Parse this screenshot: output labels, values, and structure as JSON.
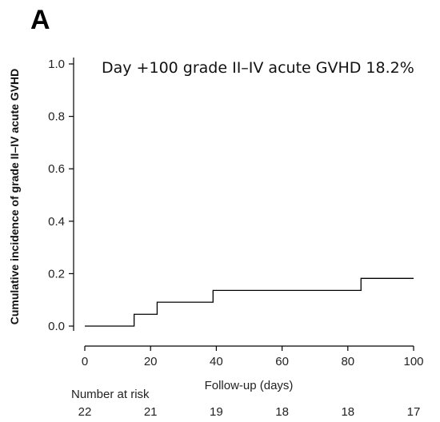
{
  "panel_label": "A",
  "chart_data": {
    "type": "line",
    "step": true,
    "annotation": "Day +100 grade II–IV acute GVHD 18.2%",
    "xlabel": "Follow-up (days)",
    "ylabel": "Cumulative incidence of grade II–IV acute GVHD",
    "xlim": [
      0,
      100
    ],
    "ylim": [
      0,
      1.0
    ],
    "x_ticks": [
      0,
      20,
      40,
      60,
      80,
      100
    ],
    "x_tick_labels": [
      "0",
      "20",
      "40",
      "60",
      "80",
      "100"
    ],
    "y_ticks": [
      0.0,
      0.2,
      0.4,
      0.6,
      0.8,
      1.0
    ],
    "y_tick_labels": [
      "0.0",
      "0.2",
      "0.4",
      "0.6",
      "0.8",
      "1.0"
    ],
    "grid": false,
    "series": [
      {
        "x": [
          0,
          15,
          22,
          39,
          84,
          100
        ],
        "y": [
          0.0,
          0.045,
          0.091,
          0.136,
          0.182,
          0.182
        ],
        "color": "#000000"
      }
    ],
    "risk_table": {
      "title": "Number at risk",
      "x": [
        0,
        20,
        40,
        60,
        80,
        100
      ],
      "values": [
        "22",
        "21",
        "19",
        "18",
        "18",
        "17"
      ]
    }
  }
}
